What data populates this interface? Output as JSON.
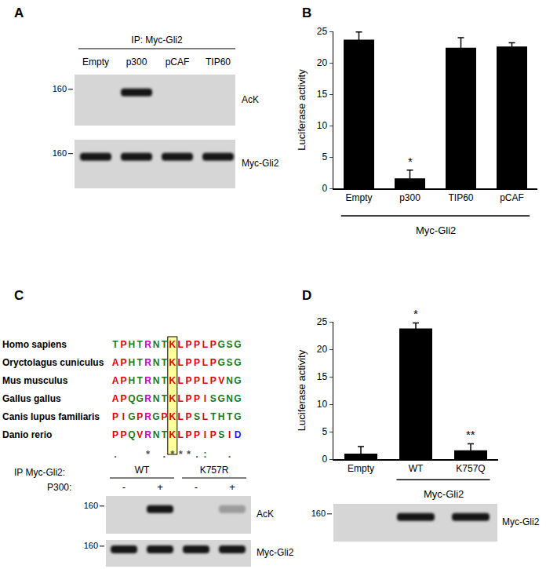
{
  "chart_data": [
    {
      "label": "B",
      "type": "bar",
      "categories": [
        "Empty",
        "p300",
        "TIP60",
        "pCAF"
      ],
      "values": [
        23.7,
        1.6,
        22.4,
        22.6
      ],
      "errors": [
        1.2,
        1.3,
        1.6,
        0.6
      ],
      "color": "#000000",
      "y_label": "Luciferase activity",
      "ylim": [
        0,
        25
      ],
      "yticks": [
        0,
        5,
        10,
        15,
        20,
        25
      ],
      "grid": false,
      "group_label": "Myc-Gli2",
      "group_categories": [
        "Empty",
        "p300",
        "TIP60",
        "pCAF"
      ],
      "annotations": [
        {
          "category": "p300",
          "text": "*"
        }
      ]
    },
    {
      "label": "D",
      "type": "bar",
      "categories": [
        "Empty",
        "WT",
        "K757Q"
      ],
      "values": [
        1.0,
        23.8,
        1.6
      ],
      "errors": [
        1.3,
        1.0,
        1.2
      ],
      "color": "#000000",
      "y_label": "Luciferase activity",
      "ylim": [
        0,
        25
      ],
      "yticks": [
        0,
        5,
        10,
        15,
        20,
        25
      ],
      "grid": false,
      "group_label": "Myc-Gli2",
      "group_categories": [
        "WT",
        "K757Q"
      ],
      "annotations": [
        {
          "category": "WT",
          "text": "*"
        },
        {
          "category": "K757Q",
          "text": "**"
        }
      ]
    }
  ],
  "panels": {
    "A": {
      "label": "A",
      "ip_label": "IP: Myc-Gli2",
      "lanes": [
        "Empty",
        "p300",
        "pCAF",
        "TIP60"
      ],
      "blots": [
        {
          "name": "AcK",
          "marker": 160,
          "bands": [
            0,
            1,
            0,
            0
          ]
        },
        {
          "name": "Myc-Gli2",
          "marker": 160,
          "bands": [
            1,
            1,
            1,
            1
          ]
        }
      ]
    },
    "C": {
      "label": "C",
      "alignment": {
        "species": [
          "Homo sapiens",
          "Oryctolagus cuniculus",
          "Mus musculus",
          "Gallus gallus",
          "Canis lupus familiaris",
          "Danio rerio"
        ],
        "sequences": [
          "TPHTRNTKLPPLPGSG",
          "APHTRNTKLPPLPGSG",
          "APHTRNTKLPPLPVNG",
          "APQGRNTKLPPISGNG",
          "PIGPRGPKLPSLTHTG",
          "PPQVRNTKLPPIPSID"
        ],
        "highlight": 7,
        "conservation": ".   * .***.:  . "
      },
      "blot": {
        "ip_label": "IP Myc-Gli2:",
        "groups": [
          "WT",
          "K757R"
        ],
        "treatment_label": "P300:",
        "treatment": [
          "-",
          "+",
          "-",
          "+"
        ],
        "blots": [
          {
            "name": "AcK",
            "marker": 160,
            "bands": [
              0,
              1,
              0,
              0.3
            ]
          },
          {
            "name": "Myc-Gli2",
            "marker": 160,
            "bands": [
              1,
              1,
              1,
              1
            ]
          }
        ]
      }
    },
    "D": {
      "blot": {
        "name": "Myc-Gli2",
        "marker": 160,
        "bands": [
          0,
          1,
          1
        ]
      }
    }
  }
}
